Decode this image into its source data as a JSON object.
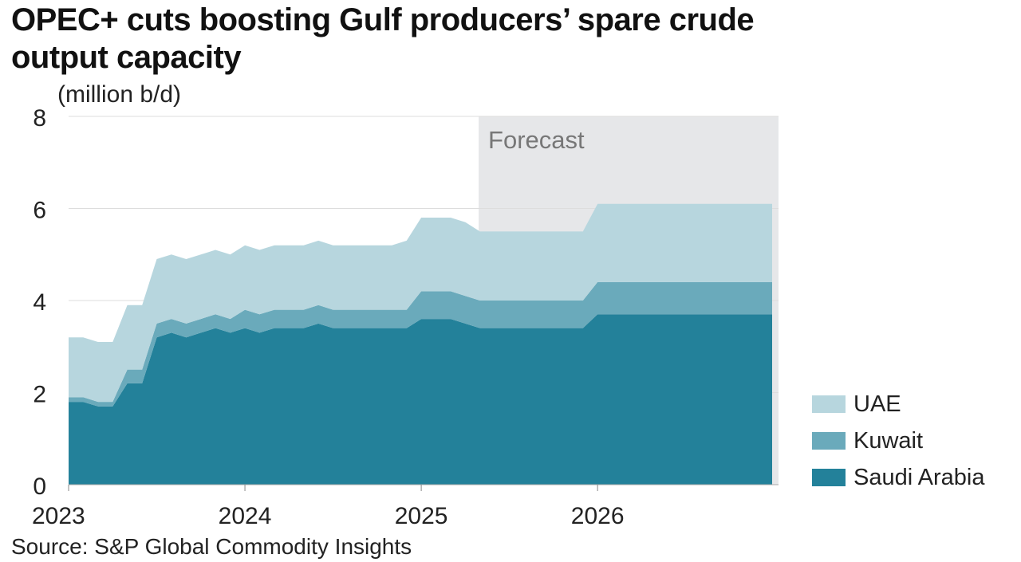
{
  "header": {
    "title": "OPEC+ cuts boosting Gulf producers’ spare crude output capacity",
    "unit": "(million b/d)"
  },
  "footer": {
    "source": "Source: S&P Global Commodity Insights"
  },
  "colors": {
    "uae": "#b7d6de",
    "kuwait": "#6aaabb",
    "saudi": "#23819a",
    "forecast": "#e6e7e9",
    "grid": "#dddddd"
  },
  "legend": [
    {
      "label": "UAE",
      "color": "#b7d6de"
    },
    {
      "label": "Kuwait",
      "color": "#6aaabb"
    },
    {
      "label": "Saudi Arabia",
      "color": "#23819a"
    }
  ],
  "chart_data": {
    "type": "area",
    "stacked": true,
    "annotation": "Forecast",
    "forecast_start": 2025.33,
    "ylim": [
      0,
      8
    ],
    "yticks": [
      0,
      2,
      4,
      6,
      8
    ],
    "xlim": [
      2023,
      2026.99
    ],
    "xticks": [
      2023,
      2024,
      2025,
      2026
    ],
    "x": [
      2023.0,
      2023.083,
      2023.167,
      2023.25,
      2023.333,
      2023.417,
      2023.5,
      2023.583,
      2023.667,
      2023.75,
      2023.833,
      2023.917,
      2024.0,
      2024.083,
      2024.167,
      2024.25,
      2024.333,
      2024.417,
      2024.5,
      2024.583,
      2024.667,
      2024.75,
      2024.833,
      2024.917,
      2025.0,
      2025.083,
      2025.167,
      2025.25,
      2025.333,
      2025.417,
      2025.5,
      2025.583,
      2025.667,
      2025.75,
      2025.833,
      2025.917,
      2026.0,
      2026.083,
      2026.167,
      2026.25,
      2026.333,
      2026.417,
      2026.5,
      2026.583,
      2026.667,
      2026.75,
      2026.833,
      2026.917
    ],
    "series": [
      {
        "name": "Saudi Arabia",
        "values": [
          1.8,
          1.8,
          1.7,
          1.7,
          2.2,
          2.2,
          3.2,
          3.3,
          3.2,
          3.3,
          3.4,
          3.3,
          3.4,
          3.3,
          3.4,
          3.4,
          3.4,
          3.5,
          3.4,
          3.4,
          3.4,
          3.4,
          3.4,
          3.4,
          3.6,
          3.6,
          3.6,
          3.5,
          3.4,
          3.4,
          3.4,
          3.4,
          3.4,
          3.4,
          3.4,
          3.4,
          3.7,
          3.7,
          3.7,
          3.7,
          3.7,
          3.7,
          3.7,
          3.7,
          3.7,
          3.7,
          3.7,
          3.7
        ]
      },
      {
        "name": "Kuwait",
        "values": [
          0.1,
          0.1,
          0.1,
          0.1,
          0.3,
          0.3,
          0.3,
          0.3,
          0.3,
          0.3,
          0.3,
          0.3,
          0.4,
          0.4,
          0.4,
          0.4,
          0.4,
          0.4,
          0.4,
          0.4,
          0.4,
          0.4,
          0.4,
          0.4,
          0.6,
          0.6,
          0.6,
          0.6,
          0.6,
          0.6,
          0.6,
          0.6,
          0.6,
          0.6,
          0.6,
          0.6,
          0.7,
          0.7,
          0.7,
          0.7,
          0.7,
          0.7,
          0.7,
          0.7,
          0.7,
          0.7,
          0.7,
          0.7
        ]
      },
      {
        "name": "UAE",
        "values": [
          1.3,
          1.3,
          1.3,
          1.3,
          1.4,
          1.4,
          1.4,
          1.4,
          1.4,
          1.4,
          1.4,
          1.4,
          1.4,
          1.4,
          1.4,
          1.4,
          1.4,
          1.4,
          1.4,
          1.4,
          1.4,
          1.4,
          1.4,
          1.5,
          1.6,
          1.6,
          1.6,
          1.6,
          1.5,
          1.5,
          1.5,
          1.5,
          1.5,
          1.5,
          1.5,
          1.5,
          1.7,
          1.7,
          1.7,
          1.7,
          1.7,
          1.7,
          1.7,
          1.7,
          1.7,
          1.7,
          1.7,
          1.7
        ]
      }
    ]
  }
}
